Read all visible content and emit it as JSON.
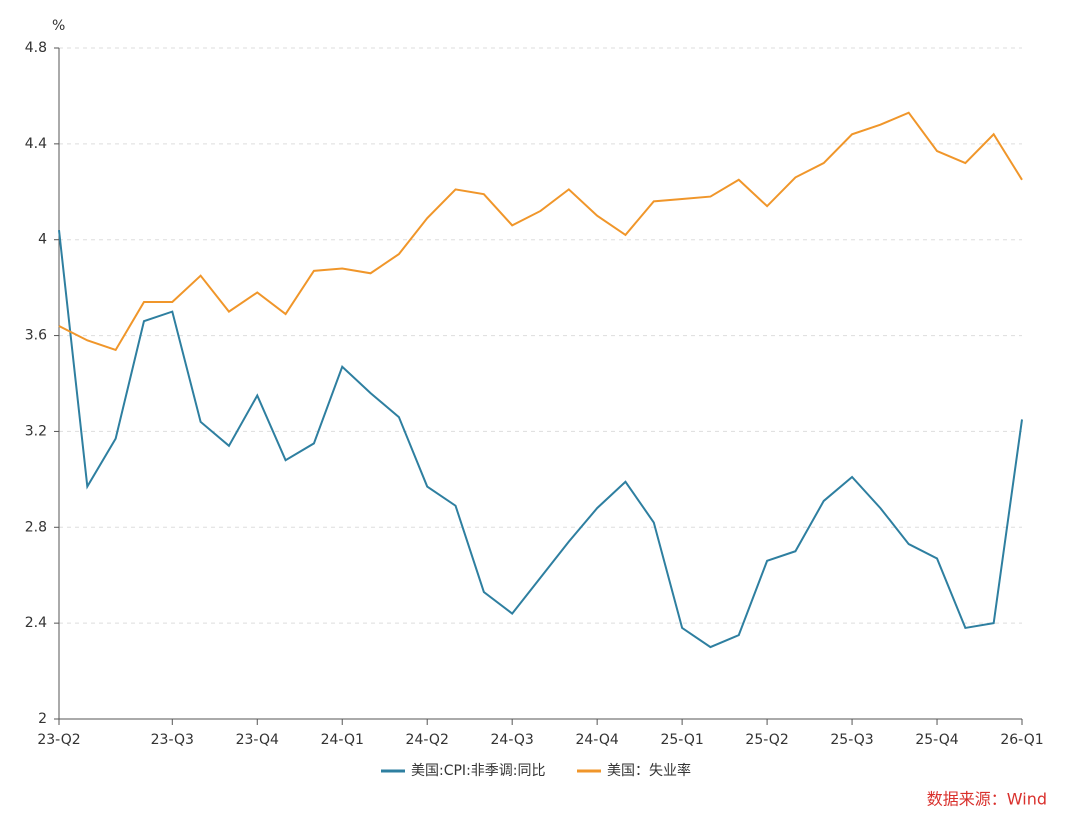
{
  "chart_data": {
    "type": "line",
    "y_label": "%",
    "source": "数据来源：Wind",
    "categories": [
      "23-Q2",
      null,
      null,
      null,
      "23-Q3",
      null,
      null,
      "23-Q4",
      null,
      null,
      "24-Q1",
      null,
      null,
      "24-Q2",
      null,
      null,
      "24-Q3",
      null,
      null,
      "24-Q4",
      null,
      null,
      "25-Q1",
      null,
      null,
      "25-Q2",
      null,
      null,
      "25-Q3",
      null,
      null,
      "25-Q4",
      null,
      null,
      "26-Q1"
    ],
    "series": [
      {
        "name": "美国:CPI:非季调:同比",
        "color": "#2e7fa0",
        "values": [
          4.04,
          2.97,
          3.17,
          3.66,
          3.7,
          3.24,
          3.14,
          3.35,
          3.08,
          3.15,
          3.47,
          3.36,
          3.26,
          2.97,
          2.89,
          2.53,
          2.44,
          2.59,
          2.74,
          2.88,
          2.99,
          2.82,
          2.38,
          2.3,
          2.35,
          2.66,
          2.7,
          2.91,
          3.01,
          2.88,
          2.73,
          2.67,
          2.38,
          2.4,
          3.25
        ]
      },
      {
        "name": "美国：失业率",
        "color": "#f0962a",
        "values": [
          3.64,
          3.58,
          3.54,
          3.74,
          3.74,
          3.85,
          3.7,
          3.78,
          3.69,
          3.87,
          3.88,
          3.86,
          3.94,
          4.09,
          4.21,
          4.19,
          4.06,
          4.12,
          4.21,
          4.1,
          4.02,
          4.16,
          4.17,
          4.18,
          4.25,
          4.14,
          4.26,
          4.32,
          4.44,
          4.48,
          4.53,
          4.37,
          4.32,
          4.44,
          4.25
        ]
      }
    ],
    "ylim": [
      2,
      4.8
    ],
    "yticks": [
      2,
      2.4,
      2.8,
      3.2,
      3.6,
      4,
      4.4,
      4.8
    ],
    "grid": true
  }
}
